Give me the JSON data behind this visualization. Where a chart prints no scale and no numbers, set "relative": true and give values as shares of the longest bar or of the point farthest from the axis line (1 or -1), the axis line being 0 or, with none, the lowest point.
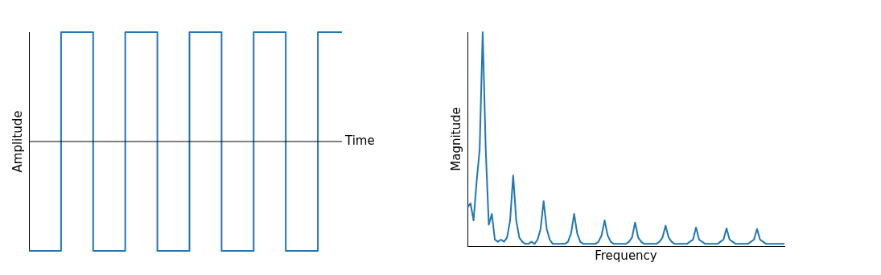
{
  "chart_data": [
    {
      "type": "step",
      "xlabel": "Time",
      "ylabel": "Amplitude",
      "relative": true,
      "tick_labels": false,
      "grid": false,
      "legend": false,
      "categories": [
        null,
        null,
        null,
        null,
        null,
        null,
        null,
        null,
        null,
        null,
        null,
        null,
        null,
        null,
        null,
        null,
        null,
        null,
        null,
        null,
        null,
        null,
        null,
        null,
        null,
        null,
        null,
        null,
        null,
        null,
        null,
        null,
        null,
        null,
        null,
        null,
        null,
        null,
        null,
        null
      ],
      "series": [
        {
          "color": "#1f77b4",
          "values": [
            -1,
            -1,
            -1,
            -1,
            1,
            1,
            1,
            1,
            -1,
            -1,
            -1,
            -1,
            1,
            1,
            1,
            1,
            -1,
            -1,
            -1,
            -1,
            1,
            1,
            1,
            1,
            -1,
            -1,
            -1,
            -1,
            1,
            1,
            1,
            1,
            -1,
            -1,
            -1,
            -1,
            1,
            1,
            1,
            1
          ]
        }
      ]
    },
    {
      "type": "line",
      "xlabel": "Frequency",
      "ylabel": "Magnitude",
      "relative": true,
      "tick_labels": false,
      "grid": false,
      "legend": false,
      "categories": [
        null,
        null,
        null,
        null,
        null,
        null,
        null,
        null,
        null,
        null,
        null,
        null,
        null,
        null,
        null,
        null,
        null,
        null,
        null,
        null,
        null,
        null,
        null,
        null,
        null,
        null,
        null,
        null,
        null,
        null,
        null,
        null,
        null,
        null,
        null,
        null,
        null,
        null,
        null,
        null,
        null,
        null,
        null,
        null,
        null,
        null,
        null,
        null,
        null,
        null,
        null,
        null,
        null,
        null,
        null,
        null,
        null,
        null,
        null,
        null,
        null,
        null,
        null,
        null,
        null,
        null,
        null,
        null,
        null,
        null,
        null,
        null,
        null,
        null,
        null,
        null,
        null,
        null,
        null,
        null,
        null,
        null,
        null,
        null,
        null,
        null,
        null,
        null,
        null,
        null,
        null,
        null,
        null,
        null,
        null,
        null,
        null,
        null,
        null,
        null,
        null,
        null,
        null,
        null,
        null
      ],
      "series": [
        {
          "color": "#1f77b4",
          "values": [
            0.18,
            0.2,
            0.12,
            0.3,
            0.45,
            1,
            0.45,
            0.1,
            0.15,
            0.03,
            0.02,
            0.03,
            0.02,
            0.04,
            0.12,
            0.33,
            0.12,
            0.04,
            0.02,
            0.01,
            0.01,
            0.02,
            0.01,
            0.03,
            0.08,
            0.21,
            0.08,
            0.03,
            0.01,
            0.01,
            0.01,
            0.01,
            0.01,
            0.02,
            0.06,
            0.15,
            0.06,
            0.02,
            0.01,
            0.01,
            0.01,
            0.01,
            0.01,
            0.02,
            0.05,
            0.12,
            0.05,
            0.02,
            0.01,
            0.01,
            0.01,
            0.01,
            0.01,
            0.02,
            0.04,
            0.11,
            0.04,
            0.02,
            0.01,
            0.01,
            0.01,
            0.01,
            0.01,
            0.02,
            0.04,
            0.095,
            0.04,
            0.02,
            0.01,
            0.01,
            0.01,
            0.01,
            0.01,
            0.02,
            0.03,
            0.087,
            0.03,
            0.02,
            0.01,
            0.01,
            0.01,
            0.01,
            0.01,
            0.02,
            0.03,
            0.083,
            0.03,
            0.02,
            0.01,
            0.01,
            0.01,
            0.01,
            0.01,
            0.02,
            0.03,
            0.08,
            0.03,
            0.02,
            0.01,
            0.01,
            0.01,
            0.01,
            0.01,
            0.01,
            0.01
          ]
        }
      ]
    }
  ]
}
